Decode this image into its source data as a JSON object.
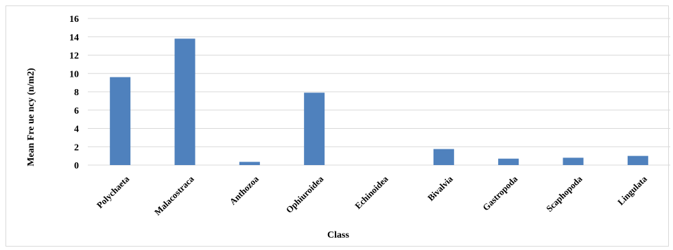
{
  "chart_data": {
    "type": "bar",
    "title": "",
    "xlabel": "Class",
    "ylabel": "Mean Fre ue ncy (n/m2)",
    "categories": [
      "Polychaeta",
      "Malacostraca",
      "Anthozoa",
      "Ophiuroidea",
      "Echinoidea",
      "Bivalvia",
      "Gastropoda",
      "Scaphopoda",
      "Lingulata"
    ],
    "values": [
      9.6,
      13.8,
      0.35,
      7.9,
      0,
      1.75,
      0.7,
      0.8,
      1.0
    ],
    "ylim": [
      0,
      16
    ],
    "yticks": [
      "0",
      "2",
      "4",
      "6",
      "8",
      "10",
      "12",
      "14",
      "16"
    ],
    "grid": true,
    "legend": "none",
    "colors": {
      "bar": "#4f81bd",
      "grid": "#d9d9d9"
    }
  }
}
